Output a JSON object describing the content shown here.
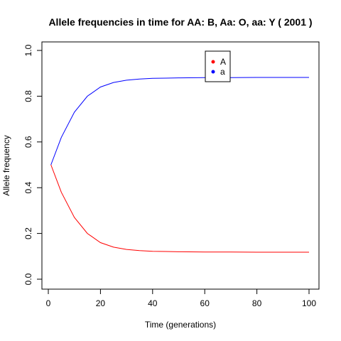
{
  "chart_data": {
    "type": "line",
    "title": "Allele frequencies in time for  AA: B, Aa: O, aa: Y  ( 2001 )",
    "xlabel": "Time (generations)",
    "ylabel": "Allele frequency",
    "xlim": [
      1,
      100
    ],
    "ylim": [
      0,
      1
    ],
    "x_ticks": [
      0,
      20,
      40,
      60,
      80,
      100
    ],
    "y_ticks": [
      0.0,
      0.2,
      0.4,
      0.6,
      0.8,
      1.0
    ],
    "x_tick_labels": [
      "0",
      "20",
      "40",
      "60",
      "80",
      "100"
    ],
    "y_tick_labels": [
      "0.0",
      "0.2",
      "0.4",
      "0.6",
      "0.8",
      "1.0"
    ],
    "legend_position": "top-right",
    "grid": false,
    "x": [
      1,
      5,
      10,
      15,
      20,
      25,
      30,
      35,
      40,
      45,
      50,
      60,
      70,
      80,
      90,
      100
    ],
    "series": [
      {
        "name": "A",
        "color": "#ff0000",
        "values": [
          0.5,
          0.38,
          0.27,
          0.2,
          0.16,
          0.14,
          0.13,
          0.125,
          0.122,
          0.121,
          0.12,
          0.119,
          0.119,
          0.118,
          0.118,
          0.118
        ]
      },
      {
        "name": "a",
        "color": "#0000ff",
        "values": [
          0.5,
          0.62,
          0.73,
          0.8,
          0.84,
          0.86,
          0.87,
          0.875,
          0.878,
          0.879,
          0.88,
          0.881,
          0.881,
          0.882,
          0.882,
          0.882
        ]
      }
    ]
  }
}
